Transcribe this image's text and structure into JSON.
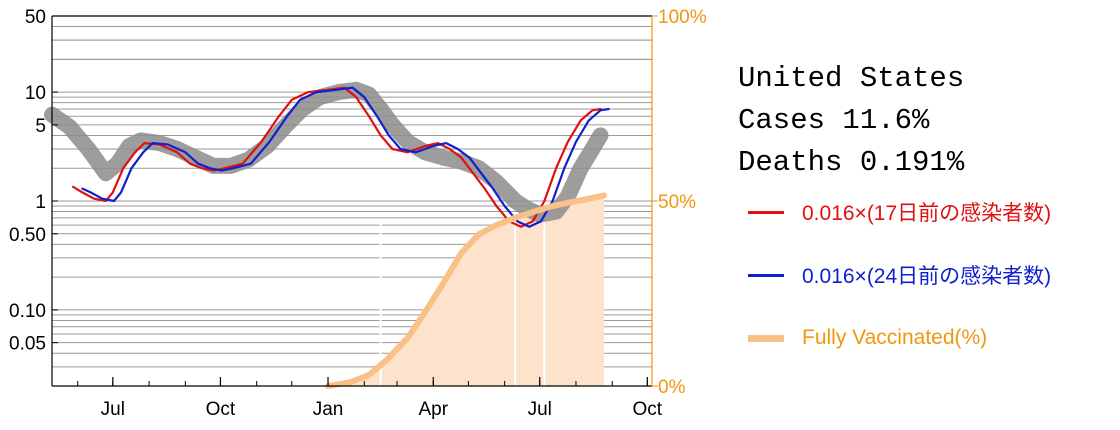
{
  "info": {
    "lines": [
      "United States",
      "Cases 11.6%",
      "Deaths 0.191%"
    ]
  },
  "legend": [
    {
      "label": "0.016×(17日前の感染者数)",
      "color": "#e01010",
      "style": "line"
    },
    {
      "label": "0.016×(24日前の感染者数)",
      "color": "#1020d0",
      "style": "line"
    },
    {
      "label": "Fully Vaccinated(%)",
      "color": "#f9c088",
      "text_color": "#f0960f",
      "style": "thick"
    }
  ],
  "chart_data": {
    "type": "line",
    "x_axis": {
      "ticks": [
        "Jul",
        "Oct",
        "Jan",
        "Apr",
        "Jul",
        "Oct"
      ],
      "tick_dates": [
        "2020-07-01",
        "2020-10-01",
        "2021-01-01",
        "2021-04-01",
        "2021-07-01",
        "2021-10-01"
      ],
      "range": [
        "2020-05-10",
        "2021-10-05"
      ]
    },
    "y_axis_left": {
      "scale": "log",
      "range": [
        0.02,
        50
      ],
      "ticks": [
        {
          "value": 50,
          "label": "50"
        },
        {
          "value": 10,
          "label": "10"
        },
        {
          "value": 5,
          "label": "5"
        },
        {
          "value": 1,
          "label": "1"
        },
        {
          "value": 0.5,
          "label": "0.50"
        },
        {
          "value": 0.1,
          "label": "0.10"
        },
        {
          "value": 0.05,
          "label": "0.05"
        }
      ]
    },
    "y_axis_right": {
      "range": [
        0,
        100
      ],
      "ticks": [
        {
          "value": 100,
          "label": "100%"
        },
        {
          "value": 50,
          "label": "50%"
        },
        {
          "value": 0,
          "label": "0%"
        }
      ],
      "color": "#f0960f"
    },
    "grid": true,
    "series": [
      {
        "name": "deaths",
        "color": "#8c8c8c",
        "axis": "left",
        "points": [
          [
            "2020-05-10",
            6.2
          ],
          [
            "2020-05-25",
            4.8
          ],
          [
            "2020-06-10",
            3.0
          ],
          [
            "2020-06-25",
            1.8
          ],
          [
            "2020-07-05",
            2.2
          ],
          [
            "2020-07-15",
            3.2
          ],
          [
            "2020-07-25",
            3.6
          ],
          [
            "2020-08-10",
            3.4
          ],
          [
            "2020-08-25",
            3.0
          ],
          [
            "2020-09-10",
            2.5
          ],
          [
            "2020-09-25",
            2.1
          ],
          [
            "2020-10-10",
            2.1
          ],
          [
            "2020-10-25",
            2.4
          ],
          [
            "2020-11-10",
            3.2
          ],
          [
            "2020-11-25",
            4.8
          ],
          [
            "2020-12-10",
            7.0
          ],
          [
            "2020-12-25",
            9.0
          ],
          [
            "2021-01-10",
            10.0
          ],
          [
            "2021-01-25",
            10.5
          ],
          [
            "2021-02-05",
            9.5
          ],
          [
            "2021-02-15",
            7.0
          ],
          [
            "2021-02-25",
            5.0
          ],
          [
            "2021-03-10",
            3.5
          ],
          [
            "2021-03-25",
            2.8
          ],
          [
            "2021-04-10",
            2.5
          ],
          [
            "2021-04-25",
            2.3
          ],
          [
            "2021-05-10",
            2.0
          ],
          [
            "2021-05-25",
            1.5
          ],
          [
            "2021-06-10",
            1.0
          ],
          [
            "2021-06-20",
            0.85
          ],
          [
            "2021-07-01",
            0.75
          ],
          [
            "2021-07-15",
            0.8
          ],
          [
            "2021-07-25",
            1.1
          ],
          [
            "2021-08-05",
            2.0
          ],
          [
            "2021-08-15",
            3.0
          ],
          [
            "2021-08-22",
            4.0
          ]
        ]
      },
      {
        "name": "17 days",
        "color": "#e01010",
        "axis": "left",
        "points": [
          [
            "2020-05-28",
            1.35
          ],
          [
            "2020-06-05",
            1.2
          ],
          [
            "2020-06-15",
            1.05
          ],
          [
            "2020-06-25",
            1.0
          ],
          [
            "2020-07-01",
            1.2
          ],
          [
            "2020-07-10",
            2.0
          ],
          [
            "2020-07-20",
            2.8
          ],
          [
            "2020-07-28",
            3.4
          ],
          [
            "2020-08-10",
            3.3
          ],
          [
            "2020-08-25",
            2.8
          ],
          [
            "2020-09-05",
            2.2
          ],
          [
            "2020-09-15",
            2.0
          ],
          [
            "2020-09-25",
            1.9
          ],
          [
            "2020-10-05",
            2.0
          ],
          [
            "2020-10-20",
            2.2
          ],
          [
            "2020-11-05",
            3.5
          ],
          [
            "2020-11-20",
            6.0
          ],
          [
            "2020-12-01",
            8.5
          ],
          [
            "2020-12-15",
            10.0
          ],
          [
            "2021-01-01",
            10.5
          ],
          [
            "2021-01-15",
            11.0
          ],
          [
            "2021-01-25",
            9.0
          ],
          [
            "2021-02-05",
            6.0
          ],
          [
            "2021-02-15",
            4.0
          ],
          [
            "2021-02-25",
            3.0
          ],
          [
            "2021-03-10",
            2.8
          ],
          [
            "2021-03-25",
            3.2
          ],
          [
            "2021-04-05",
            3.4
          ],
          [
            "2021-04-15",
            3.0
          ],
          [
            "2021-04-25",
            2.5
          ],
          [
            "2021-05-05",
            1.8
          ],
          [
            "2021-05-15",
            1.3
          ],
          [
            "2021-05-25",
            0.9
          ],
          [
            "2021-06-05",
            0.65
          ],
          [
            "2021-06-15",
            0.58
          ],
          [
            "2021-06-25",
            0.65
          ],
          [
            "2021-07-05",
            1.0
          ],
          [
            "2021-07-15",
            2.0
          ],
          [
            "2021-07-25",
            3.5
          ],
          [
            "2021-08-05",
            5.5
          ],
          [
            "2021-08-15",
            6.8
          ],
          [
            "2021-08-22",
            7.0
          ]
        ]
      },
      {
        "name": "24 days",
        "color": "#1020d0",
        "axis": "left",
        "points": [
          [
            "2020-06-05",
            1.3
          ],
          [
            "2020-06-12",
            1.2
          ],
          [
            "2020-06-22",
            1.05
          ],
          [
            "2020-07-02",
            1.0
          ],
          [
            "2020-07-08",
            1.2
          ],
          [
            "2020-07-17",
            2.0
          ],
          [
            "2020-07-27",
            2.8
          ],
          [
            "2020-08-04",
            3.4
          ],
          [
            "2020-08-17",
            3.3
          ],
          [
            "2020-09-01",
            2.8
          ],
          [
            "2020-09-12",
            2.2
          ],
          [
            "2020-09-22",
            2.0
          ],
          [
            "2020-10-02",
            1.9
          ],
          [
            "2020-10-12",
            2.0
          ],
          [
            "2020-10-27",
            2.2
          ],
          [
            "2020-11-12",
            3.5
          ],
          [
            "2020-11-27",
            6.0
          ],
          [
            "2020-12-08",
            8.5
          ],
          [
            "2020-12-22",
            10.0
          ],
          [
            "2021-01-08",
            10.5
          ],
          [
            "2021-01-22",
            11.0
          ],
          [
            "2021-02-01",
            9.0
          ],
          [
            "2021-02-12",
            6.0
          ],
          [
            "2021-02-22",
            4.0
          ],
          [
            "2021-03-04",
            3.0
          ],
          [
            "2021-03-17",
            2.8
          ],
          [
            "2021-04-01",
            3.2
          ],
          [
            "2021-04-12",
            3.4
          ],
          [
            "2021-04-22",
            3.0
          ],
          [
            "2021-05-02",
            2.5
          ],
          [
            "2021-05-12",
            1.8
          ],
          [
            "2021-05-22",
            1.3
          ],
          [
            "2021-06-01",
            0.9
          ],
          [
            "2021-06-12",
            0.65
          ],
          [
            "2021-06-22",
            0.58
          ],
          [
            "2021-07-02",
            0.65
          ],
          [
            "2021-07-12",
            1.0
          ],
          [
            "2021-07-22",
            2.0
          ],
          [
            "2021-08-01",
            3.5
          ],
          [
            "2021-08-12",
            5.5
          ],
          [
            "2021-08-22",
            6.8
          ],
          [
            "2021-08-29",
            7.0
          ]
        ]
      },
      {
        "name": "Fully Vaccinated(%)",
        "color": "#f9c088",
        "axis": "right",
        "points": [
          [
            "2021-01-01",
            0.0
          ],
          [
            "2021-01-20",
            1.0
          ],
          [
            "2021-02-05",
            3.0
          ],
          [
            "2021-02-20",
            7.0
          ],
          [
            "2021-03-10",
            13.0
          ],
          [
            "2021-03-25",
            20.0
          ],
          [
            "2021-04-10",
            28.0
          ],
          [
            "2021-04-25",
            36.0
          ],
          [
            "2021-05-10",
            41.0
          ],
          [
            "2021-05-25",
            43.5
          ],
          [
            "2021-06-10",
            45.5
          ],
          [
            "2021-06-25",
            47.0
          ],
          [
            "2021-07-10",
            48.5
          ],
          [
            "2021-07-25",
            49.5
          ],
          [
            "2021-08-10",
            50.5
          ],
          [
            "2021-08-25",
            51.5
          ]
        ]
      }
    ]
  }
}
